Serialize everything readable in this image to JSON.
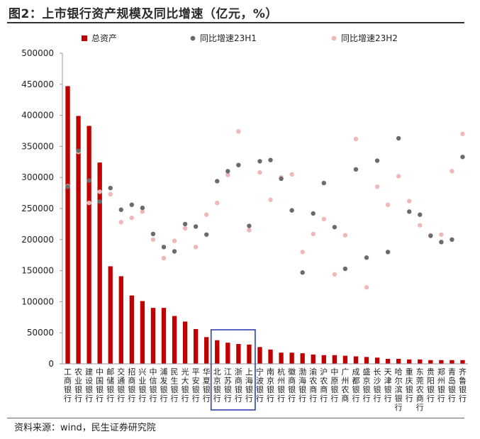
{
  "title": "图2：上市银行资产规模及同比增速（亿元，%）",
  "source": "资料来源：wind，民生证券研究院",
  "chart_data": {
    "type": "bar",
    "ylim": [
      0,
      500000
    ],
    "yticks": [
      0,
      50000,
      100000,
      150000,
      200000,
      250000,
      300000,
      350000,
      400000,
      450000,
      500000
    ],
    "legend_position": "top",
    "highlight": [
      "北京银行",
      "江苏银行",
      "浙商银行",
      "上海银行"
    ],
    "categories": [
      "工商银行",
      "农业银行",
      "建设银行",
      "中国银行",
      "邮储银行",
      "交通银行",
      "招商银行",
      "兴业银行",
      "中信银行",
      "浦发银行",
      "民生银行",
      "光大银行",
      "平安银行",
      "华夏银行",
      "北京银行",
      "江苏银行",
      "浙商银行",
      "上海银行",
      "宁波银行",
      "南京银行",
      "杭州银行",
      "徽商银行",
      "渤海银行",
      "渝农商行",
      "沪农商行",
      "中原银行",
      "广州农商",
      "成都银行",
      "盛京银行",
      "长沙银行",
      "天津银行",
      "哈尔滨银行",
      "重庆银行",
      "东莞农商行",
      "贵阳银行",
      "郑州银行",
      "青岛银行",
      "齐鲁银行"
    ],
    "series": [
      {
        "name": "总资产",
        "kind": "bar",
        "color": "#c00000",
        "values": [
          447000,
          399000,
          383000,
          324000,
          157000,
          141000,
          110000,
          101000,
          90000,
          90000,
          77000,
          68000,
          56000,
          43000,
          38000,
          34000,
          32000,
          31000,
          27000,
          23000,
          18000,
          18000,
          17000,
          15000,
          14000,
          14000,
          13000,
          12000,
          11000,
          10000,
          8000,
          8000,
          7000,
          7000,
          6000,
          6000,
          6000,
          6000
        ]
      },
      {
        "name": "同比增速23H1",
        "kind": "scatter",
        "color": "#6b6b6b",
        "values": [
          285000,
          343000,
          295000,
          261000,
          283000,
          248000,
          256000,
          251000,
          209000,
          188000,
          181000,
          225000,
          221000,
          208000,
          294000,
          310000,
          320000,
          222000,
          326000,
          328000,
          298000,
          247000,
          147000,
          242000,
          291000,
          220000,
          153000,
          313000,
          171000,
          327000,
          180000,
          363000,
          245000,
          240000,
          206000,
          196000,
          200000,
          333000
        ]
      },
      {
        "name": "同比增速23H2",
        "kind": "scatter",
        "color": "#f0b8b8",
        "values": [
          286000,
          341000,
          259000,
          277000,
          273000,
          228000,
          235000,
          245000,
          200000,
          170000,
          198000,
          218000,
          188000,
          240000,
          259000,
          304000,
          374000,
          215000,
          308000,
          264000,
          300000,
          305000,
          180000,
          209000,
          233000,
          144000,
          207000,
          362000,
          123000,
          285000,
          256000,
          302000,
          262000,
          223000,
          207000,
          208000,
          310000,
          370000
        ]
      }
    ]
  }
}
